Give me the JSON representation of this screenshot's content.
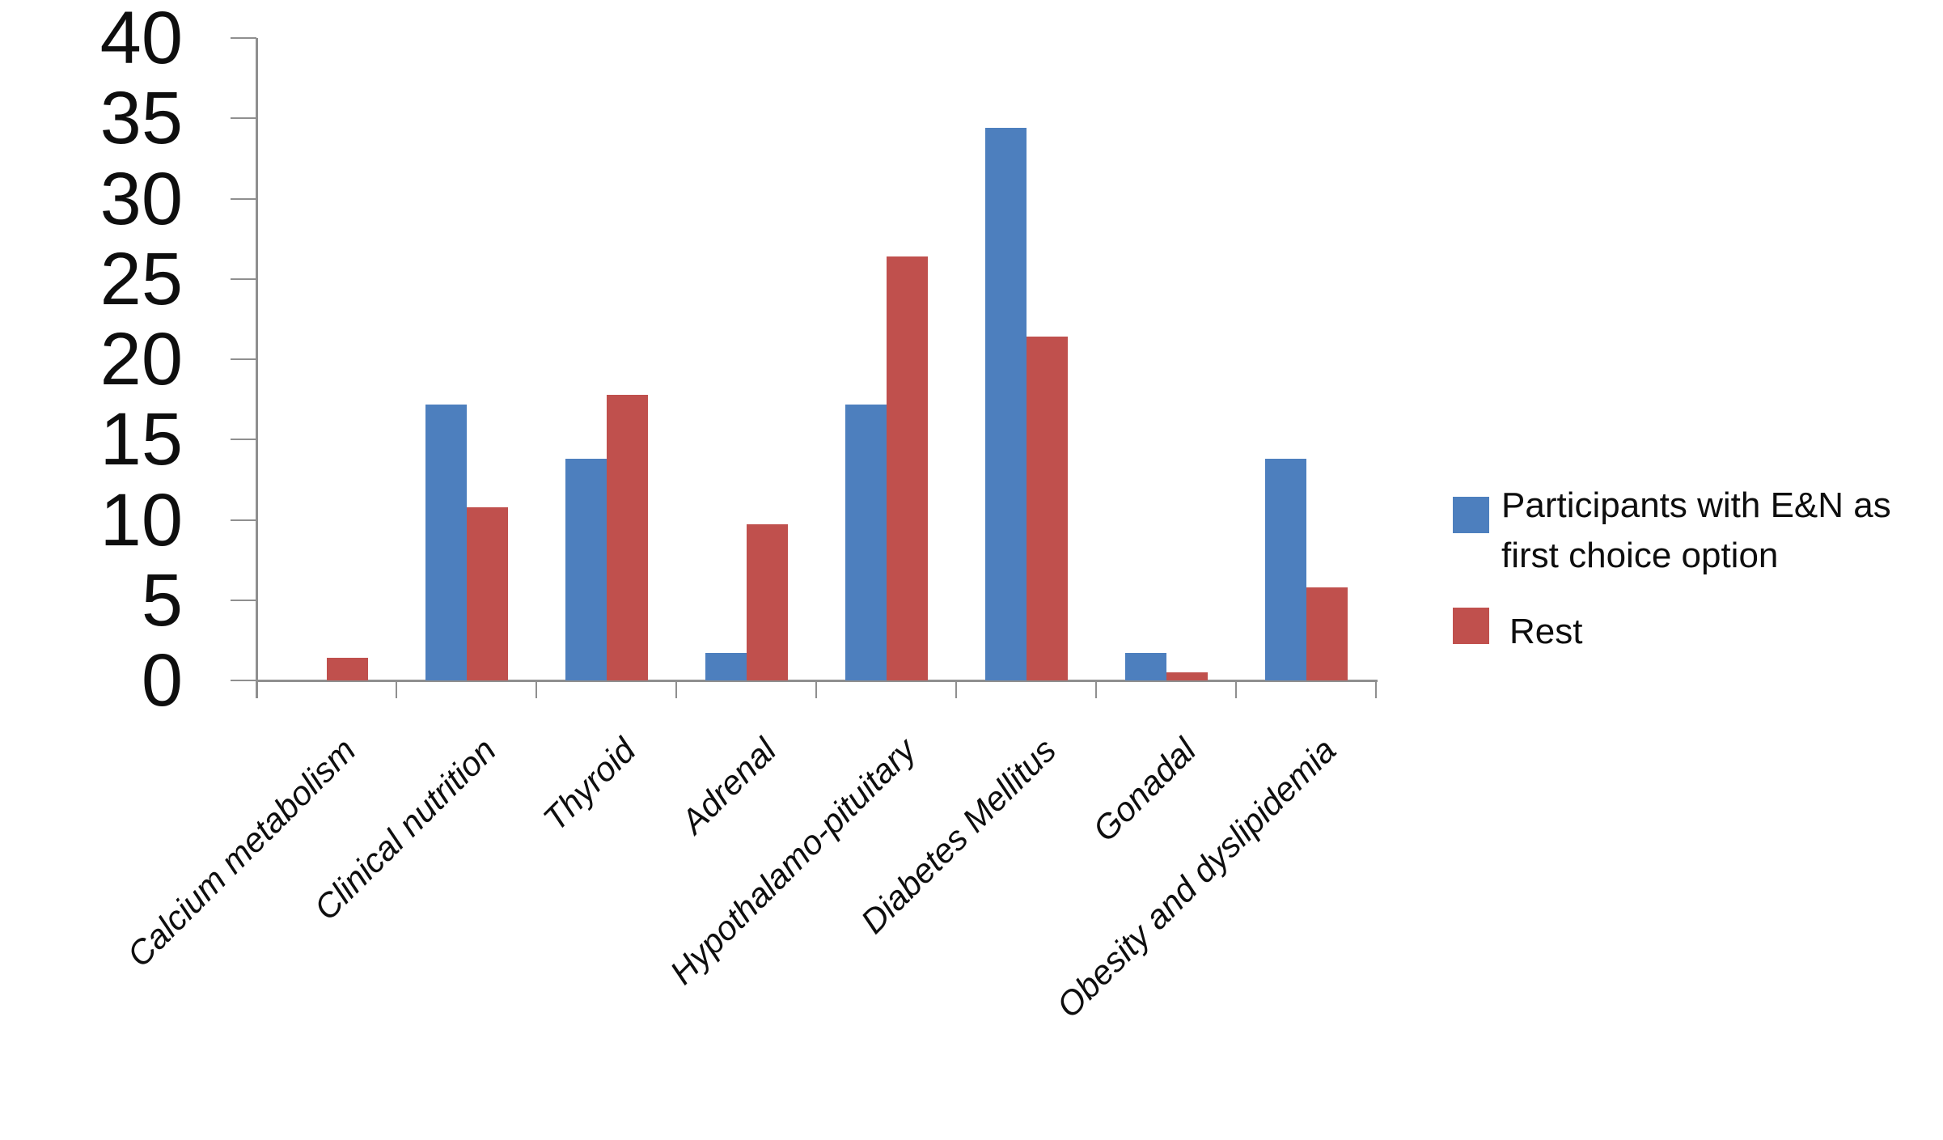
{
  "chart_data": {
    "type": "bar",
    "title": "",
    "categories": [
      "Calcium metabolism",
      "Clinical nutrition",
      "Thyroid",
      "Adrenal",
      "Hypothalamo-pituitary",
      "Diabetes Mellitus",
      "Gonadal",
      "Obesity and dyslipidemia"
    ],
    "series": [
      {
        "name": "Participants with E&N as first choice option",
        "color": "#4d7fbe",
        "values": [
          0,
          17.2,
          13.8,
          1.7,
          17.2,
          34.4,
          1.7,
          13.8
        ]
      },
      {
        "name": "Rest",
        "color": "#c0504d",
        "values": [
          1.4,
          10.8,
          17.8,
          9.7,
          26.4,
          21.4,
          0.5,
          5.8
        ]
      }
    ],
    "y_axis": {
      "min": 0,
      "max": 40,
      "step": 5,
      "tick_labels": [
        "0",
        "5",
        "10",
        "15",
        "20",
        "25",
        "30",
        "35",
        "40"
      ]
    },
    "x_axis": {
      "label_rotation_deg": -45,
      "italic_labels": true
    },
    "legend_position": "right",
    "grid": false,
    "colors": {
      "axis": "#8f8f8f",
      "text": "#0e0e0e",
      "background": "#ffffff"
    }
  }
}
